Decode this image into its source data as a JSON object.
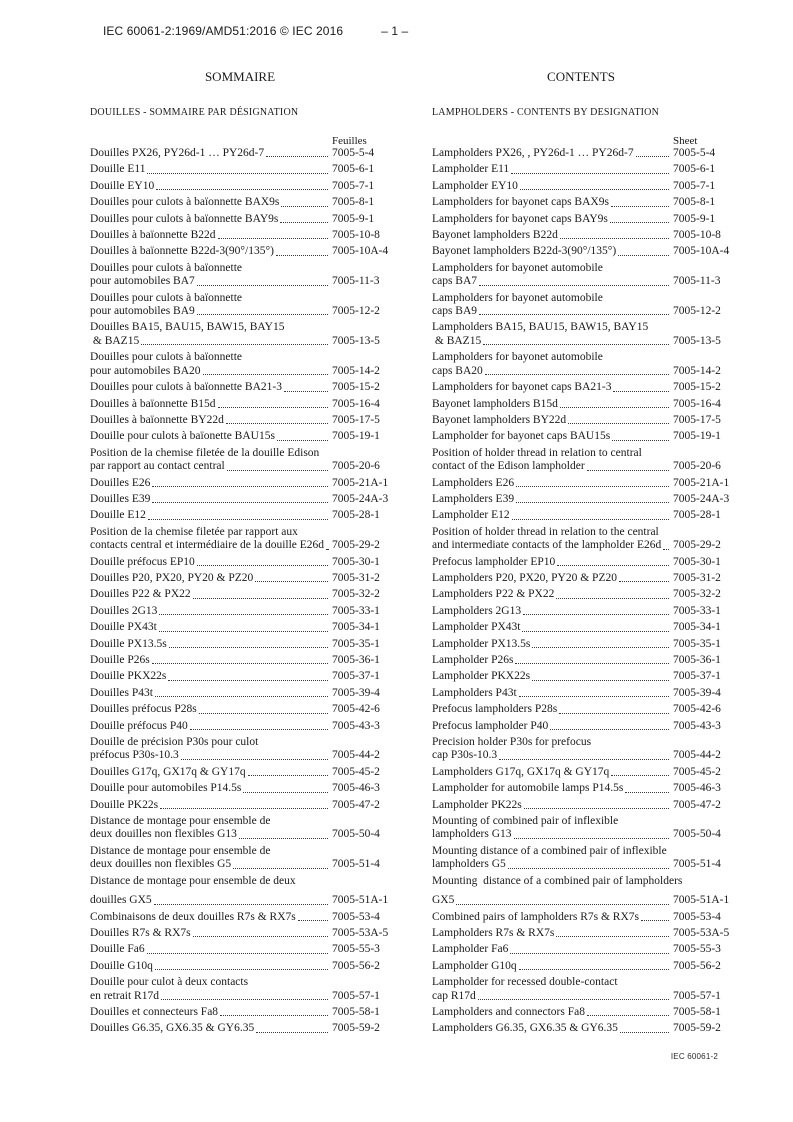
{
  "page": {
    "header": "IEC 60061-2:1969/AMD51:2016 © IEC 2016",
    "page_number": "– 1 –",
    "footer": "IEC 60061-2",
    "colors": {
      "text": "#1a1a1a",
      "background": "#ffffff"
    }
  },
  "french": {
    "title": "SOMMAIRE",
    "section": "DOUILLES - SOMMAIRE PAR DÉSIGNATION",
    "column_header": "Feuilles"
  },
  "english": {
    "title": "CONTENTS",
    "section": "LAMPHOLDERS - CONTENTS BY DESIGNATION",
    "column_header": "Sheet"
  },
  "rows": [
    {
      "fr": [
        "Douilles PX26, PY26d-1 … PY26d-7"
      ],
      "en": [
        "Lampholders PX26, , PY26d-1 … PY26d-7"
      ],
      "sheet": "7005-5-4"
    },
    {
      "fr": [
        "Douille E11"
      ],
      "en": [
        "Lampholder E11"
      ],
      "sheet": "7005-6-1"
    },
    {
      "fr": [
        "Douille EY10"
      ],
      "en": [
        "Lampholder EY10"
      ],
      "sheet": "7005-7-1"
    },
    {
      "fr": [
        "Douilles pour culots à baïonnette BAX9s"
      ],
      "en": [
        "Lampholders for bayonet caps BAX9s"
      ],
      "sheet": "7005-8-1"
    },
    {
      "fr": [
        "Douilles pour culots à baïonnette BAY9s"
      ],
      "en": [
        "Lampholders for bayonet caps BAY9s"
      ],
      "sheet": "7005-9-1"
    },
    {
      "fr": [
        "Douilles à baïonnette B22d"
      ],
      "en": [
        "Bayonet lampholders B22d"
      ],
      "sheet": "7005-10-8"
    },
    {
      "fr": [
        "Douilles à baïonnette B22d-3(90°/135°)"
      ],
      "en": [
        "Bayonet lampholders B22d-3(90°/135°)"
      ],
      "sheet": "7005-10A-4"
    },
    {
      "fr": [
        "Douilles pour culots à baïonnette",
        "pour automobiles BA7"
      ],
      "en": [
        "Lampholders for bayonet automobile",
        "caps BA7"
      ],
      "sheet": "7005-11-3"
    },
    {
      "fr": [
        "Douilles pour culots à baïonnette",
        "pour automobiles BA9"
      ],
      "en": [
        "Lampholders for bayonet automobile",
        "caps BA9"
      ],
      "sheet": "7005-12-2"
    },
    {
      "fr": [
        "Douilles BA15, BAU15, BAW15, BAY15",
        " & BAZ15"
      ],
      "en": [
        "Lampholders BA15, BAU15, BAW15, BAY15",
        " & BAZ15"
      ],
      "sheet": "7005-13-5"
    },
    {
      "fr": [
        "Douilles pour culots à baïonnette",
        "pour automobiles BA20"
      ],
      "en": [
        "Lampholders for bayonet automobile",
        "caps BA20"
      ],
      "sheet": "7005-14-2"
    },
    {
      "fr": [
        "Douilles pour culots à baïonnette BA21-3"
      ],
      "en": [
        "Lampholders for bayonet caps BA21-3"
      ],
      "sheet": "7005-15-2"
    },
    {
      "fr": [
        "Douilles à baïonnette B15d"
      ],
      "en": [
        "Bayonet lampholders B15d"
      ],
      "sheet": "7005-16-4"
    },
    {
      "fr": [
        "Douilles à baïonnette BY22d"
      ],
      "en": [
        "Bayonet lampholders BY22d"
      ],
      "sheet": "7005-17-5"
    },
    {
      "fr": [
        "Douille pour culots à baïonette BAU15s"
      ],
      "en": [
        "Lampholder for bayonet caps BAU15s"
      ],
      "sheet": "7005-19-1"
    },
    {
      "fr": [
        "Position de la chemise filetée de la douille Edison",
        "par rapport au contact central"
      ],
      "en": [
        "Position of holder thread in relation to central",
        "contact of the Edison lampholder"
      ],
      "sheet": "7005-20-6"
    },
    {
      "fr": [
        "Douilles E26"
      ],
      "en": [
        "Lampholders E26"
      ],
      "sheet": "7005-21A-1"
    },
    {
      "fr": [
        "Douilles E39"
      ],
      "en": [
        "Lampholders E39"
      ],
      "sheet": "7005-24A-3"
    },
    {
      "fr": [
        "Douille E12"
      ],
      "en": [
        "Lampholder E12"
      ],
      "sheet": "7005-28-1"
    },
    {
      "fr": [
        "Position de la chemise filetée par rapport aux",
        "contacts central et intermédiaire de la douille E26d"
      ],
      "en": [
        "Position of holder thread in relation to the central",
        "and intermediate contacts of the lampholder E26d"
      ],
      "sheet": "7005-29-2"
    },
    {
      "fr": [
        "Douille préfocus EP10"
      ],
      "en": [
        "Prefocus lampholder EP10"
      ],
      "sheet": "7005-30-1"
    },
    {
      "fr": [
        "Douilles P20, PX20, PY20 & PZ20"
      ],
      "en": [
        "Lampholders P20, PX20, PY20 & PZ20"
      ],
      "sheet": "7005-31-2"
    },
    {
      "fr": [
        "Douilles P22 & PX22"
      ],
      "en": [
        "Lampholders P22 & PX22"
      ],
      "sheet": "7005-32-2"
    },
    {
      "fr": [
        "Douilles 2G13"
      ],
      "en": [
        "Lampholders 2G13"
      ],
      "sheet": "7005-33-1"
    },
    {
      "fr": [
        "Douille PX43t"
      ],
      "en": [
        "Lampholder PX43t"
      ],
      "sheet": "7005-34-1"
    },
    {
      "fr": [
        "Douille PX13.5s"
      ],
      "en": [
        "Lampholder PX13.5s"
      ],
      "sheet": "7005-35-1"
    },
    {
      "fr": [
        "Douille P26s"
      ],
      "en": [
        "Lampholder P26s"
      ],
      "sheet": "7005-36-1"
    },
    {
      "fr": [
        "Douille PKX22s"
      ],
      "en": [
        "Lampholder PKX22s"
      ],
      "sheet": "7005-37-1"
    },
    {
      "fr": [
        "Douilles P43t"
      ],
      "en": [
        "Lampholders P43t"
      ],
      "sheet": "7005-39-4"
    },
    {
      "fr": [
        "Douilles préfocus P28s"
      ],
      "en": [
        "Prefocus lampholders P28s"
      ],
      "sheet": "7005-42-6"
    },
    {
      "fr": [
        "Douille préfocus P40"
      ],
      "en": [
        "Prefocus lampholder P40"
      ],
      "sheet": "7005-43-3"
    },
    {
      "fr": [
        "Douille de précision P30s pour culot",
        "préfocus P30s-10.3"
      ],
      "en": [
        "Precision holder P30s for prefocus",
        "cap P30s-10.3"
      ],
      "sheet": "7005-44-2"
    },
    {
      "fr": [
        "Douilles G17q, GX17q & GY17q"
      ],
      "en": [
        "Lampholders G17q, GX17q & GY17q"
      ],
      "sheet": "7005-45-2"
    },
    {
      "fr": [
        "Douille pour automobiles P14.5s"
      ],
      "en": [
        "Lampholder for automobile lamps P14.5s"
      ],
      "sheet": "7005-46-3"
    },
    {
      "fr": [
        "Douille PK22s"
      ],
      "en": [
        "Lampholder PK22s"
      ],
      "sheet": "7005-47-2"
    },
    {
      "fr": [
        "Distance de montage pour ensemble de",
        "deux douilles non flexibles G13"
      ],
      "en": [
        "Mounting of combined pair of inflexible",
        "lampholders G13"
      ],
      "sheet": "7005-50-4"
    },
    {
      "fr": [
        "Distance de montage pour ensemble de",
        "deux douilles non flexibles G5"
      ],
      "en": [
        "Mounting distance of a combined pair of inflexible",
        "lampholders G5"
      ],
      "sheet": "7005-51-4"
    },
    {
      "fr": [
        "Distance de montage pour ensemble de deux",
        "douilles GX5"
      ],
      "en": [
        "Mounting  distance of a combined pair of lampholders",
        "GX5"
      ],
      "sheet": "7005-51A-1",
      "gap": true
    },
    {
      "fr": [
        "Combinaisons de deux douilles R7s & RX7s"
      ],
      "en": [
        "Combined pairs of lampholders R7s & RX7s"
      ],
      "sheet": "7005-53-4"
    },
    {
      "fr": [
        "Douilles R7s & RX7s"
      ],
      "en": [
        "Lampholders R7s & RX7s"
      ],
      "sheet": "7005-53A-5"
    },
    {
      "fr": [
        "Douille Fa6"
      ],
      "en": [
        "Lampholder Fa6"
      ],
      "sheet": "7005-55-3"
    },
    {
      "fr": [
        "Douille G10q"
      ],
      "en": [
        "Lampholder G10q"
      ],
      "sheet": "7005-56-2"
    },
    {
      "fr": [
        "Douille pour culot à deux contacts",
        "en retrait R17d"
      ],
      "en": [
        "Lampholder for recessed double-contact",
        "cap R17d"
      ],
      "sheet": "7005-57-1"
    },
    {
      "fr": [
        "Douilles et connecteurs Fa8"
      ],
      "en": [
        "Lampholders and connectors Fa8"
      ],
      "sheet": "7005-58-1"
    },
    {
      "fr": [
        "Douilles G6.35, GX6.35 & GY6.35"
      ],
      "en": [
        "Lampholders G6.35, GX6.35 & GY6.35"
      ],
      "sheet": "7005-59-2"
    }
  ]
}
